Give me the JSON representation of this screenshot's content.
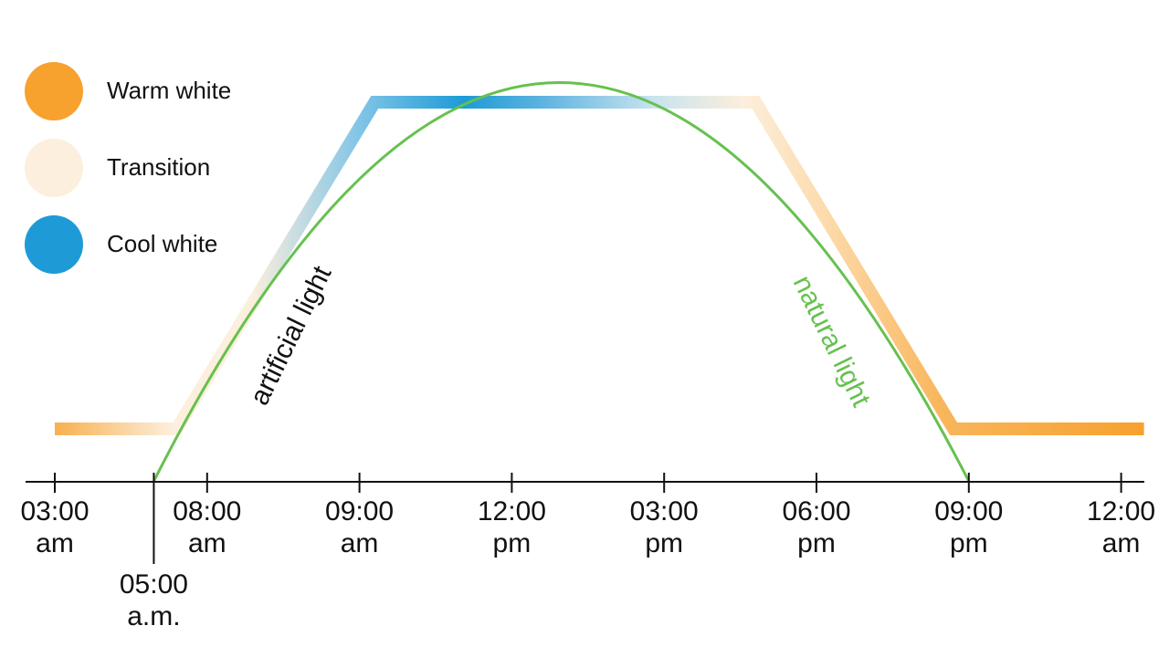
{
  "colors": {
    "warm_white": "#F7A12E",
    "transition": "#FCEFDD",
    "cool_white": "#1E9BD7",
    "natural_light": "#66C14F",
    "axis": "#111111"
  },
  "legend": [
    {
      "label": "Warm white",
      "color": "#F7A12E"
    },
    {
      "label": "Transition",
      "color": "#FCEFDD"
    },
    {
      "label": "Cool white",
      "color": "#1E9BD7"
    }
  ],
  "chart_data": {
    "type": "line",
    "ticks": [
      {
        "line1": "03:00",
        "line2": "am"
      },
      {
        "line1": "08:00",
        "line2": "am"
      },
      {
        "line1": "09:00",
        "line2": "am"
      },
      {
        "line1": "12:00",
        "line2": "pm"
      },
      {
        "line1": "03:00",
        "line2": "pm"
      },
      {
        "line1": "06:00",
        "line2": "pm"
      },
      {
        "line1": "09:00",
        "line2": "pm"
      },
      {
        "line1": "12:00",
        "line2": "am"
      }
    ],
    "marker": {
      "line1": "05:00",
      "line2": "a.m."
    },
    "series": [
      {
        "name": "artificial light",
        "points": [
          {
            "x": 0,
            "y": 0
          },
          {
            "x": 0.8,
            "y": 0
          },
          {
            "x": 2.1,
            "y": 1
          },
          {
            "x": 4.6,
            "y": 1
          },
          {
            "x": 5.9,
            "y": 0
          },
          {
            "x": 7.15,
            "y": 0
          }
        ]
      },
      {
        "name": "natural light",
        "points": [
          {
            "x": 0.65,
            "y": -0.16
          },
          {
            "x": 3.3,
            "y": 1.06
          },
          {
            "x": 6.0,
            "y": -0.16
          }
        ]
      }
    ]
  }
}
